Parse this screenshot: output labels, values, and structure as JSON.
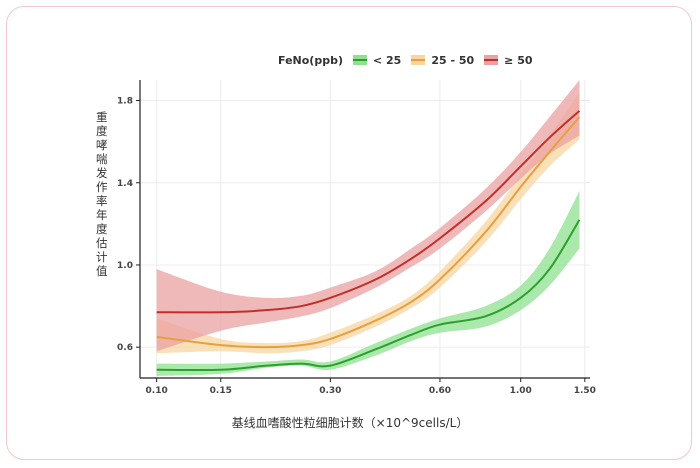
{
  "chart_data": {
    "type": "line",
    "title": "",
    "xlabel": "基线血嗜酸性粒细胞计数（×10^9cells/L）",
    "ylabel": "重度哮喘发作率年度估计值",
    "x_scale": "log",
    "xlim": [
      0.09,
      1.55
    ],
    "ylim": [
      0.45,
      1.9
    ],
    "xticks": [
      0.1,
      0.15,
      0.3,
      0.6,
      1.0,
      1.5
    ],
    "xtick_labels": [
      "0.10",
      "0.15",
      "0.30",
      "0.60",
      "1.00",
      "1.50"
    ],
    "yticks": [
      0.6,
      1.0,
      1.4,
      1.8
    ],
    "ytick_labels": [
      "0.6",
      "1.0",
      "1.4",
      "1.8"
    ],
    "grid": true,
    "legend_title": "FeNo(ppb)",
    "legend_position": "top",
    "series": [
      {
        "name": "< 25",
        "color": "#2ca02c",
        "fill": "#8fe08f",
        "x": [
          0.1,
          0.15,
          0.2,
          0.25,
          0.3,
          0.4,
          0.5,
          0.6,
          0.8,
          1.0,
          1.2,
          1.45
        ],
        "y": [
          0.49,
          0.49,
          0.51,
          0.52,
          0.51,
          0.59,
          0.66,
          0.71,
          0.75,
          0.84,
          0.98,
          1.22
        ],
        "lower": [
          0.46,
          0.47,
          0.5,
          0.51,
          0.49,
          0.56,
          0.63,
          0.67,
          0.7,
          0.78,
          0.9,
          1.08
        ],
        "upper": [
          0.52,
          0.52,
          0.53,
          0.54,
          0.53,
          0.62,
          0.69,
          0.74,
          0.8,
          0.9,
          1.08,
          1.36
        ]
      },
      {
        "name": "25 - 50",
        "color": "#e6a040",
        "fill": "#f7d6a0",
        "x": [
          0.1,
          0.15,
          0.2,
          0.25,
          0.3,
          0.4,
          0.5,
          0.6,
          0.8,
          1.0,
          1.2,
          1.45
        ],
        "y": [
          0.65,
          0.61,
          0.6,
          0.61,
          0.64,
          0.73,
          0.82,
          0.93,
          1.16,
          1.38,
          1.55,
          1.72
        ],
        "lower": [
          0.57,
          0.58,
          0.57,
          0.58,
          0.61,
          0.7,
          0.79,
          0.89,
          1.11,
          1.32,
          1.48,
          1.61
        ],
        "upper": [
          0.74,
          0.64,
          0.62,
          0.63,
          0.67,
          0.76,
          0.85,
          0.97,
          1.21,
          1.44,
          1.63,
          1.84
        ]
      },
      {
        "name": "≥ 50",
        "color": "#c0302a",
        "fill": "#eba1a1",
        "x": [
          0.1,
          0.15,
          0.2,
          0.25,
          0.3,
          0.4,
          0.5,
          0.6,
          0.8,
          1.0,
          1.2,
          1.45
        ],
        "y": [
          0.77,
          0.77,
          0.78,
          0.8,
          0.84,
          0.93,
          1.03,
          1.13,
          1.31,
          1.48,
          1.62,
          1.75
        ],
        "lower": [
          0.58,
          0.68,
          0.72,
          0.75,
          0.79,
          0.89,
          0.99,
          1.08,
          1.26,
          1.42,
          1.54,
          1.63
        ],
        "upper": [
          0.98,
          0.87,
          0.84,
          0.85,
          0.89,
          0.97,
          1.08,
          1.18,
          1.37,
          1.55,
          1.72,
          1.9
        ]
      }
    ]
  }
}
